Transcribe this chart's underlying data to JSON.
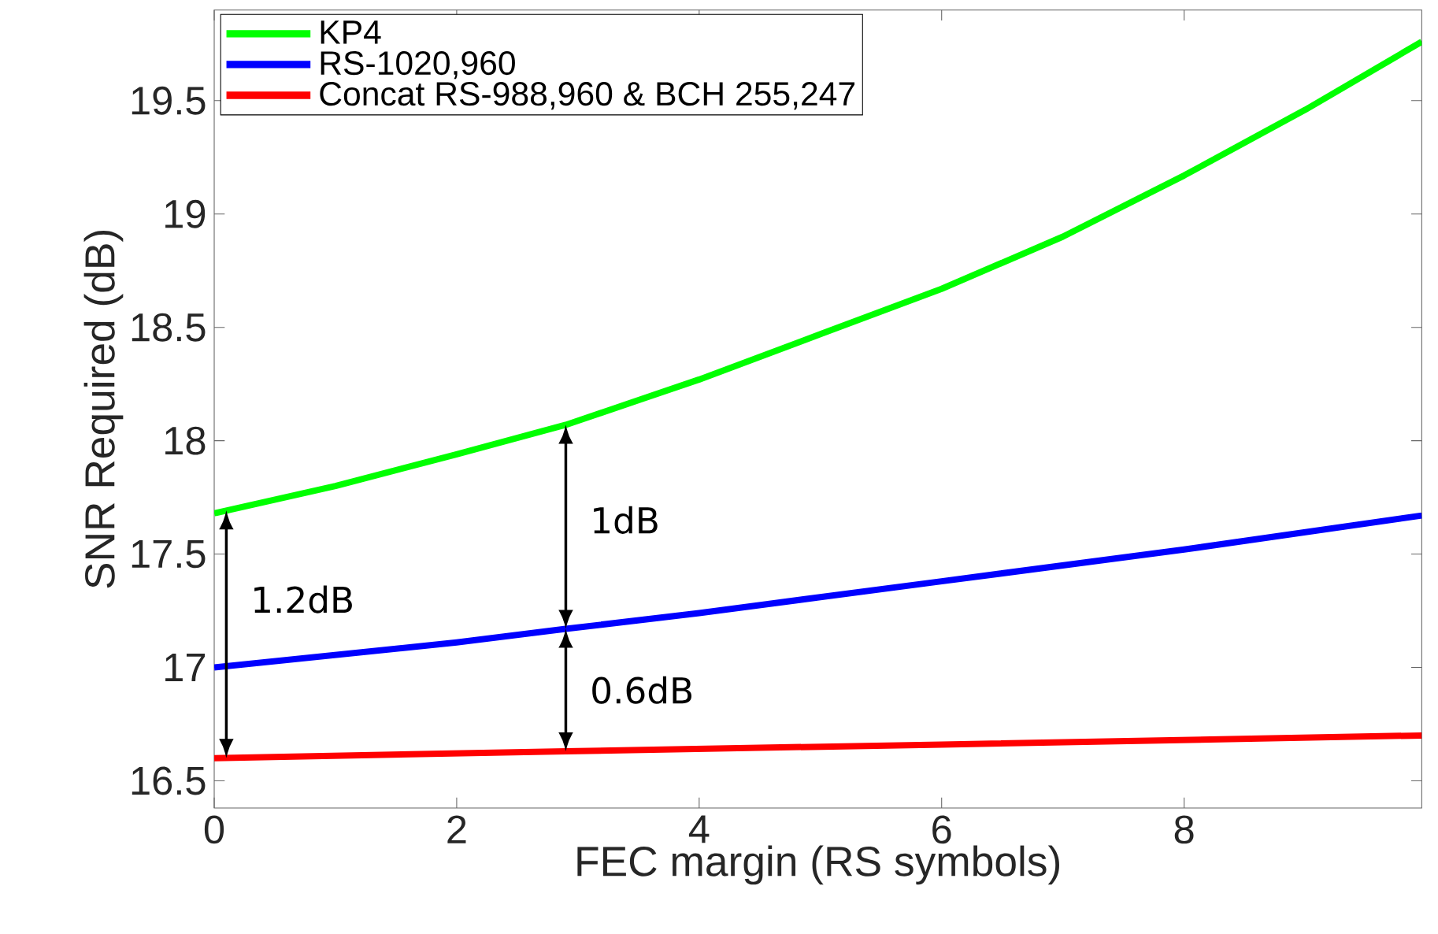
{
  "chart_data": {
    "type": "line",
    "xlabel": "FEC margin (RS symbols)",
    "ylabel": "SNR Required (dB)",
    "xlim": [
      0,
      9.96
    ],
    "ylim": [
      16.38,
      19.9
    ],
    "xticks": [
      0,
      2,
      4,
      6,
      8
    ],
    "yticks": [
      16.5,
      17,
      17.5,
      18,
      18.5,
      19,
      19.5
    ],
    "grid": false,
    "legend": "top left",
    "line_style": "solid",
    "marker": "none",
    "series": [
      {
        "name": "KP4",
        "color": "#00ff00",
        "x": [
          0,
          1,
          2,
          2.9,
          4,
          5,
          6,
          7,
          8,
          9,
          9.96
        ],
        "values": [
          17.68,
          17.8,
          17.94,
          18.07,
          18.27,
          18.47,
          18.67,
          18.9,
          19.17,
          19.46,
          19.76
        ]
      },
      {
        "name": "RS-1020,960",
        "color": "#0000ff",
        "x": [
          0,
          2,
          2.9,
          4,
          6,
          8,
          9.96
        ],
        "values": [
          17.0,
          17.11,
          17.17,
          17.24,
          17.38,
          17.52,
          17.67
        ]
      },
      {
        "name": "Concat RS-988,960 & BCH 255,247",
        "color": "#ff0000",
        "x": [
          0,
          2.9,
          6,
          9.96
        ],
        "values": [
          16.6,
          16.63,
          16.66,
          16.7
        ]
      }
    ],
    "annotations": [
      "1.2dB",
      "1dB",
      "0.6dB"
    ]
  }
}
